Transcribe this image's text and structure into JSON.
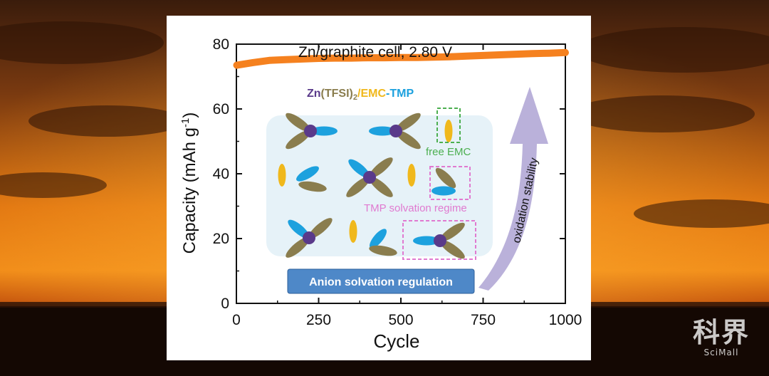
{
  "chart_data": {
    "type": "line",
    "title": "Zn/graphite cell, 2.80 V",
    "xlabel": "Cycle",
    "ylabel": "Capacity (mAh g",
    "ylabel_sup": "-1",
    "ylabel_close": ")",
    "xlim": [
      0,
      1000
    ],
    "ylim": [
      0,
      80
    ],
    "xticks": [
      "0",
      "250",
      "500",
      "750",
      "1000"
    ],
    "yticks": [
      "0",
      "20",
      "40",
      "60",
      "80"
    ],
    "grid": false,
    "series": [
      {
        "color": "#f5811f",
        "x": [
          1,
          50,
          100,
          150,
          200,
          250,
          300,
          350,
          400,
          450,
          500,
          550,
          600,
          650,
          700,
          750,
          800,
          850,
          900,
          950,
          1000
        ],
        "y": [
          73.5,
          74.3,
          75.0,
          75.2,
          75.4,
          75.6,
          75.7,
          75.7,
          75.8,
          75.8,
          75.9,
          75.9,
          76.0,
          76.1,
          76.3,
          76.5,
          76.7,
          76.9,
          77.1,
          77.2,
          77.4
        ]
      }
    ]
  },
  "inset": {
    "formula_zn": "Zn",
    "formula_tfsi": "(TFSI)",
    "formula_sub": "2",
    "formula_slash": "/",
    "formula_emc": "EMC",
    "formula_dash": "-",
    "formula_tmp": "TMP",
    "free_emc_label": "free EMC",
    "tmp_label": "TMP solvation regime",
    "arrow_label": "oxidation stability",
    "banner_label": "Anion solvation regulation",
    "colors": {
      "zn": "#5a3a8a",
      "tmp": "#1da1de",
      "tfsi": "#8a7d4e",
      "emc": "#f0b81c",
      "free_emc_box": "#4caf50",
      "tmp_box": "#e07ad0",
      "arrow": "#b3a8d6",
      "box_bg": "#e6f2f8",
      "banner": "#4e88c8"
    }
  },
  "watermark": {
    "chinese": "科界",
    "english": "SciMall"
  }
}
